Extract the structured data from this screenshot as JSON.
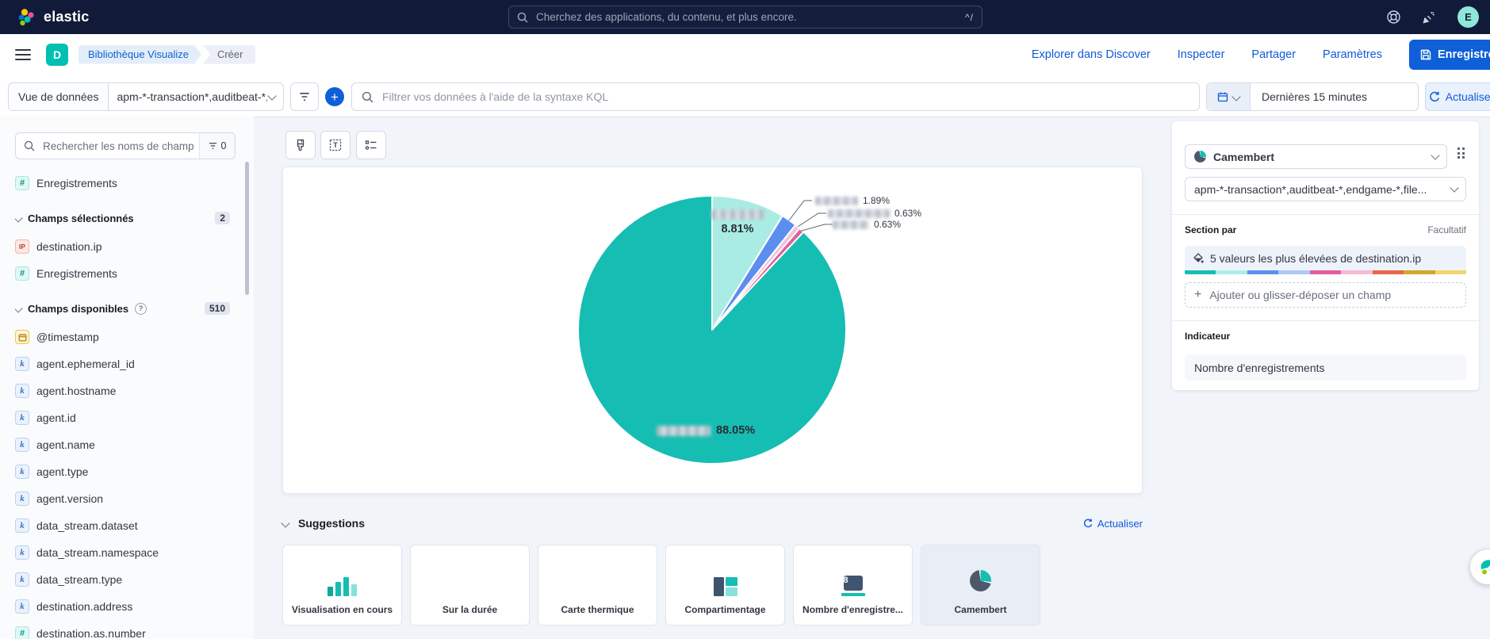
{
  "topbar": {
    "brand": "elastic",
    "search_placeholder": "Cherchez des applications, du contenu, et plus encore.",
    "shortcut": "^/",
    "avatar_initial": "E"
  },
  "navbar": {
    "app_initial": "D",
    "breadcrumbs": [
      "Bibliothèque Visualize",
      "Créer"
    ],
    "links": [
      "Explorer dans Discover",
      "Inspecter",
      "Partager",
      "Paramètres"
    ],
    "save_label": "Enregistrer"
  },
  "querybar": {
    "dataview_label": "Vue de données",
    "dataview_value": "apm-*-transaction*,auditbeat-*,en...",
    "kql_placeholder": "Filtrer vos données à l'aide de la syntaxe KQL",
    "time_range": "Dernières 15 minutes",
    "refresh_label": "Actualiser"
  },
  "sidebar": {
    "search_placeholder": "Rechercher les noms de champ",
    "filter_count": "0",
    "pinned_fields": [
      {
        "name": "Enregistrements",
        "type": "number"
      }
    ],
    "sections": [
      {
        "label": "Champs sélectionnés",
        "badge": "2",
        "info": false,
        "fields": [
          {
            "name": "destination.ip",
            "type": "ip"
          },
          {
            "name": "Enregistrements",
            "type": "number"
          }
        ]
      },
      {
        "label": "Champs disponibles",
        "badge": "510",
        "info": true,
        "fields": [
          {
            "name": "@timestamp",
            "type": "date"
          },
          {
            "name": "agent.ephemeral_id",
            "type": "keyword"
          },
          {
            "name": "agent.hostname",
            "type": "keyword"
          },
          {
            "name": "agent.id",
            "type": "keyword"
          },
          {
            "name": "agent.name",
            "type": "keyword"
          },
          {
            "name": "agent.type",
            "type": "keyword"
          },
          {
            "name": "agent.version",
            "type": "keyword"
          },
          {
            "name": "data_stream.dataset",
            "type": "keyword"
          },
          {
            "name": "data_stream.namespace",
            "type": "keyword"
          },
          {
            "name": "data_stream.type",
            "type": "keyword"
          },
          {
            "name": "destination.address",
            "type": "keyword"
          },
          {
            "name": "destination.as.number",
            "type": "number"
          }
        ]
      }
    ]
  },
  "chart_data": {
    "type": "pie",
    "title": "",
    "slice_by": "5 valeurs les plus élevées de destination.ip",
    "metric": "Nombre d'enregistrements",
    "legend": "none",
    "start_angle_deg": 0,
    "clockwise": true,
    "slices": [
      {
        "category_masked": true,
        "value_pct": 8.81,
        "label": "8.81%",
        "color": "#a9ece4",
        "label_placement": "inside"
      },
      {
        "category_masked": true,
        "value_pct": 1.89,
        "label": "1.89%",
        "color": "#5c8ef0",
        "label_placement": "callout"
      },
      {
        "category_masked": true,
        "value_pct": 0.63,
        "label": "0.63%",
        "color": "#f1c3d6",
        "label_placement": "callout"
      },
      {
        "category_masked": true,
        "value_pct": 0.63,
        "label": "0.63%",
        "color": "#e2609c",
        "label_placement": "callout"
      },
      {
        "category_masked": true,
        "value_pct": 88.05,
        "label": "88.05%",
        "color": "#16bdb2",
        "label_placement": "inside"
      }
    ]
  },
  "suggestions": {
    "title": "Suggestions",
    "refresh_label": "Actualiser",
    "metric_badge": "8",
    "cards": [
      {
        "label": "Visualisation en cours",
        "icon": "bar",
        "selected": false
      },
      {
        "label": "Sur la durée",
        "icon": "histogram",
        "selected": false
      },
      {
        "label": "Carte thermique",
        "icon": "heatmap",
        "selected": false
      },
      {
        "label": "Compartimentage",
        "icon": "treemap",
        "selected": false
      },
      {
        "label": "Nombre d'enregistre...",
        "icon": "metric",
        "selected": false
      },
      {
        "label": "Camembert",
        "icon": "pie",
        "selected": true
      }
    ]
  },
  "config_panel": {
    "chart_type": "Camembert",
    "index_pattern": "apm-*-transaction*,auditbeat-*,endgame-*,file...",
    "section_title": "Section par",
    "optional_label": "Facultatif",
    "dimension_label": "5 valeurs les plus élevées de destination.ip",
    "palette": [
      "#16bdb2",
      "#aaeee6",
      "#5c8ef0",
      "#abc9f4",
      "#e15f9d",
      "#f6bad2",
      "#e7664c",
      "#d2a82a",
      "#f1d56f"
    ],
    "add_field_label": "Ajouter ou glisser-déposer un champ",
    "metric_title": "Indicateur",
    "metric_value": "Nombre d'enregistrements"
  }
}
